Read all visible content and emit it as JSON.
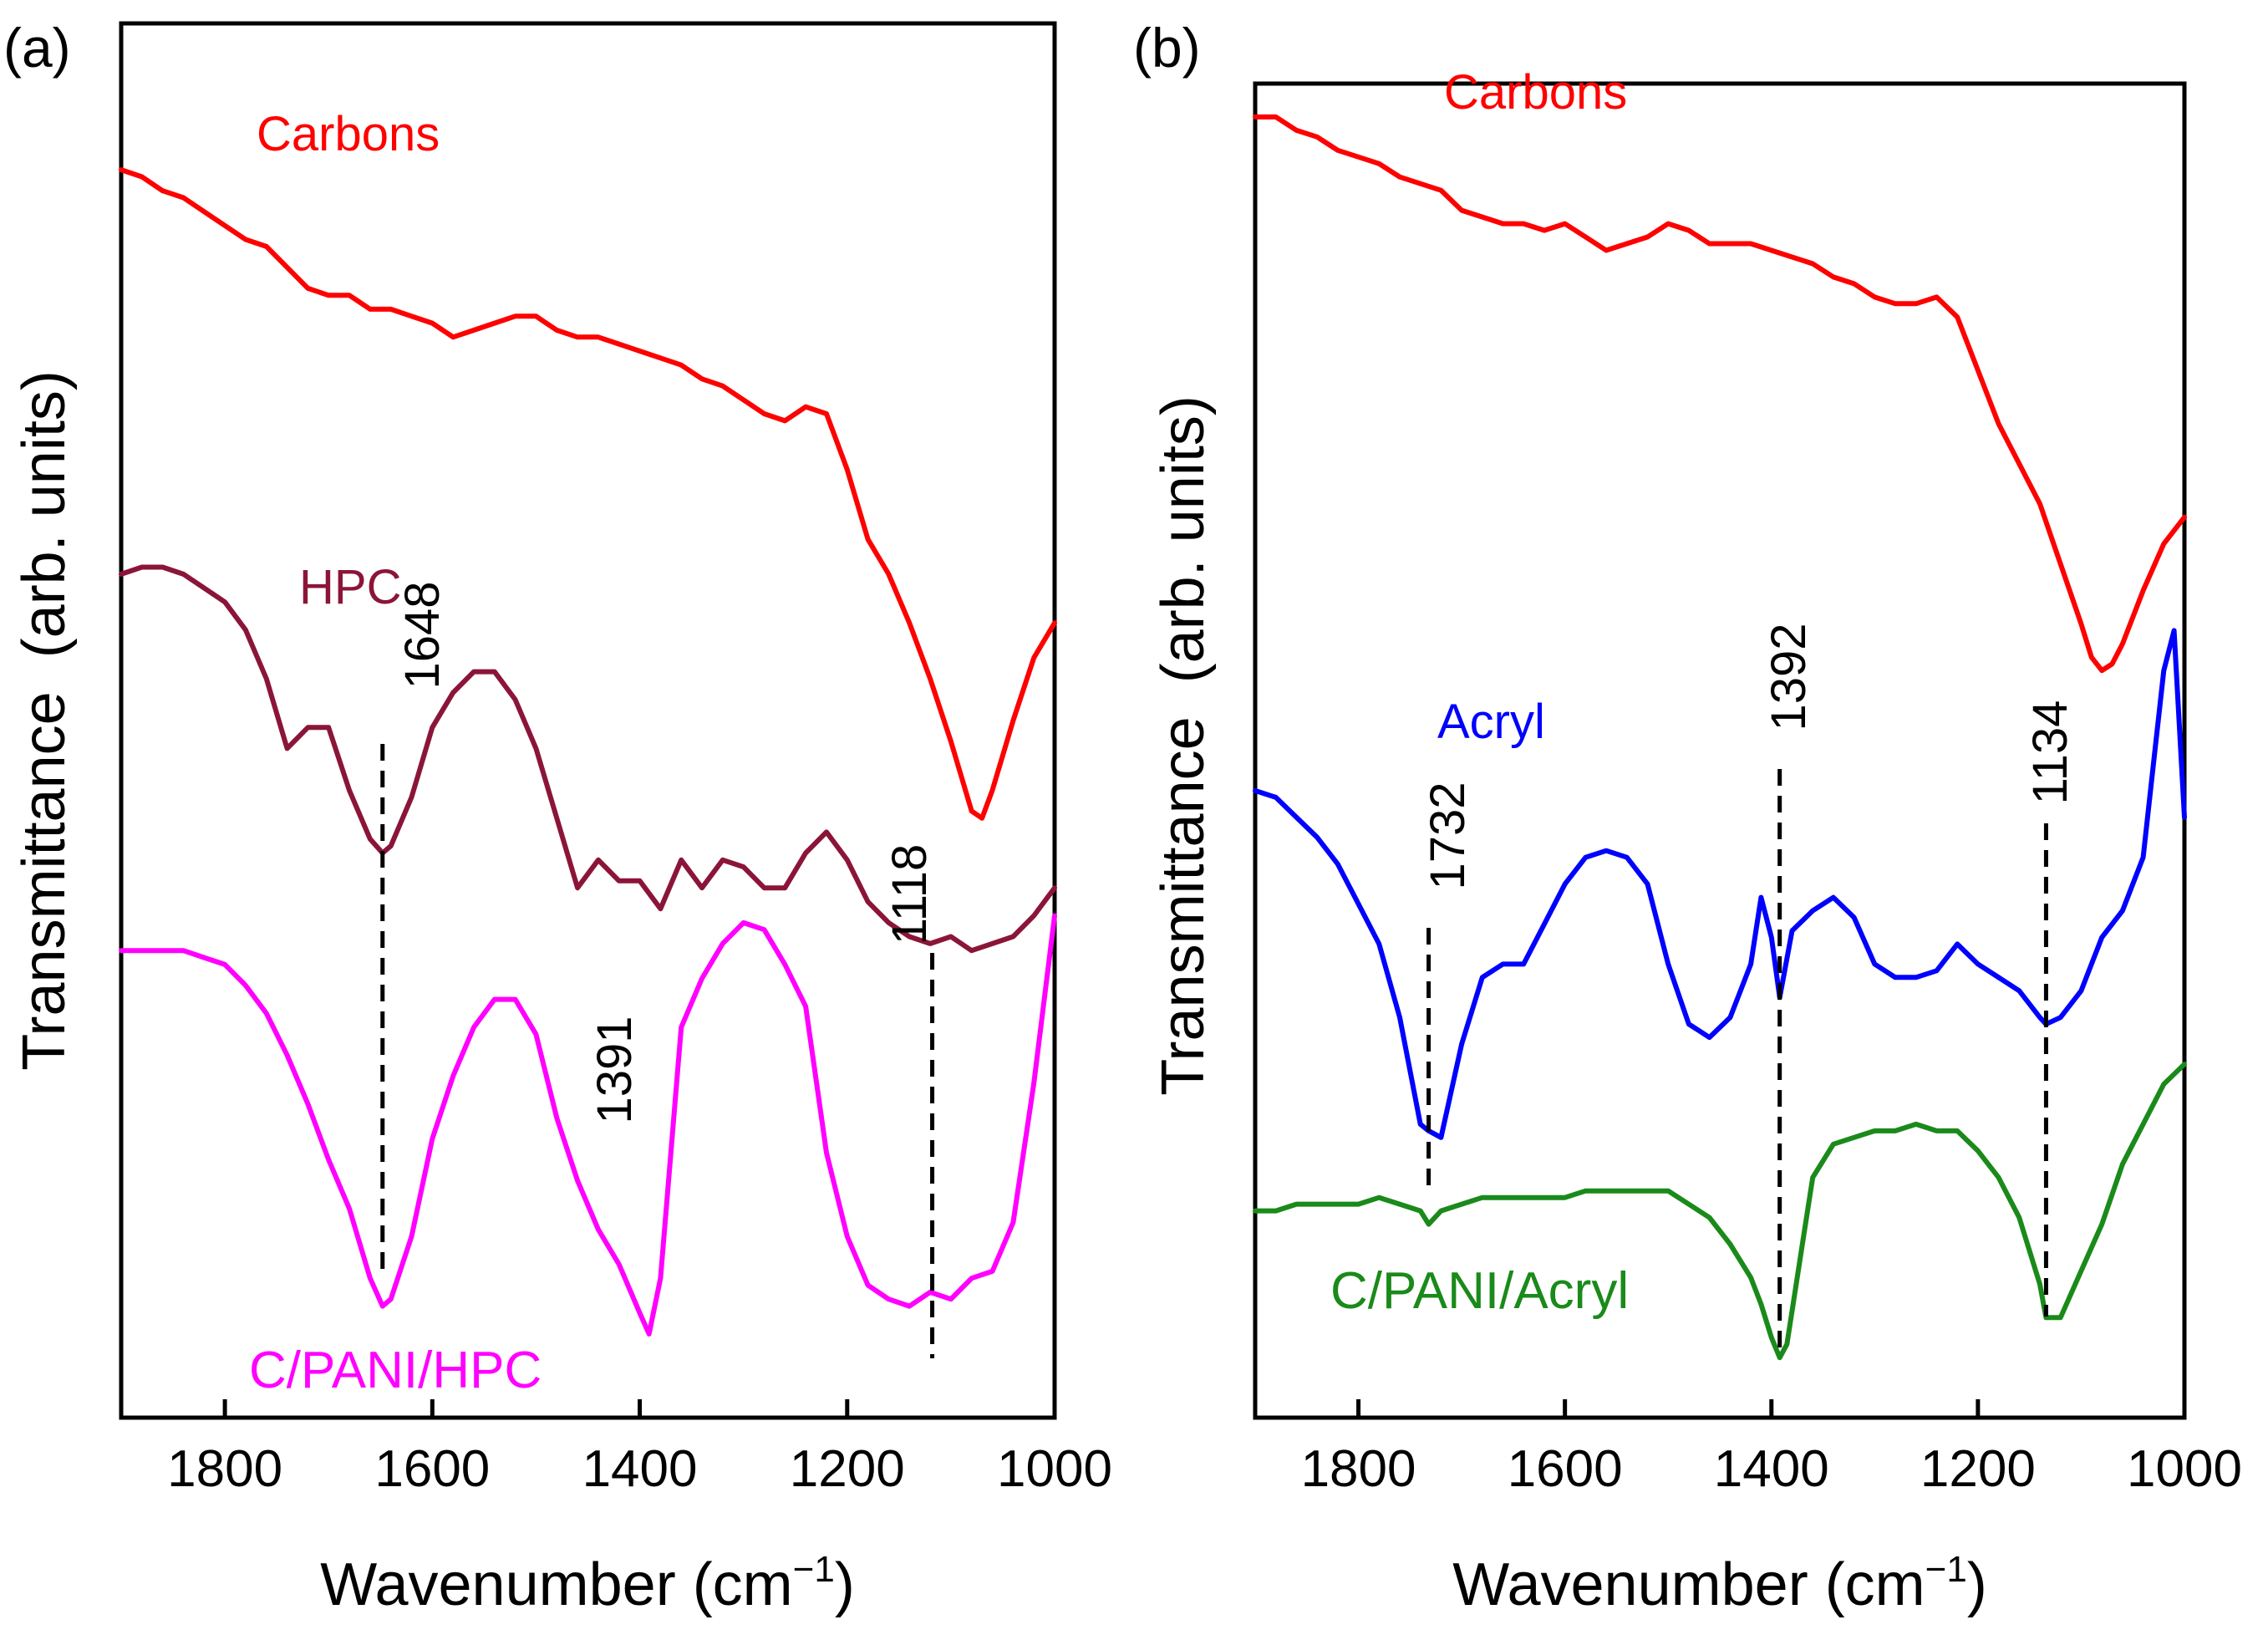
{
  "chart_data": [
    {
      "panel": "(a)",
      "type": "line",
      "xlabel": "Wavenumber (cm",
      "xlabel_sup": "−1",
      "xlabel_tail": ")",
      "ylabel": "Transmittance  (arb. units)",
      "xlim": [
        1900,
        1000
      ],
      "x_ticks": [
        1800,
        1600,
        1400,
        1200,
        1000
      ],
      "y_axis_units": "arbitrary (offset traces, 0 = bottom, 100 = top)",
      "ylim": [
        0,
        100
      ],
      "series": [
        {
          "name": "Carbons",
          "color": "#ff0000",
          "x": [
            1900,
            1880,
            1860,
            1840,
            1820,
            1800,
            1780,
            1760,
            1740,
            1720,
            1700,
            1680,
            1660,
            1640,
            1620,
            1600,
            1580,
            1560,
            1540,
            1520,
            1500,
            1480,
            1460,
            1440,
            1420,
            1400,
            1380,
            1360,
            1340,
            1320,
            1300,
            1280,
            1260,
            1240,
            1220,
            1200,
            1180,
            1160,
            1140,
            1120,
            1100,
            1090,
            1080,
            1070,
            1060,
            1040,
            1020,
            1000
          ],
          "y": [
            89.5,
            89.0,
            88.0,
            87.5,
            86.5,
            85.5,
            84.5,
            84.0,
            82.5,
            81.0,
            80.5,
            80.5,
            79.5,
            79.5,
            79.0,
            78.5,
            77.5,
            78.0,
            78.5,
            79.0,
            79.0,
            78.0,
            77.5,
            77.5,
            77.0,
            76.5,
            76.0,
            75.5,
            74.5,
            74.0,
            73.0,
            72.0,
            71.5,
            72.5,
            72.0,
            68.0,
            63.0,
            60.5,
            57.0,
            53.0,
            48.5,
            46.0,
            43.5,
            43.0,
            45.0,
            50.0,
            54.5,
            57.0
          ]
        },
        {
          "name": "HPC",
          "color": "#8b1538",
          "x": [
            1900,
            1880,
            1860,
            1840,
            1820,
            1800,
            1780,
            1760,
            1740,
            1720,
            1700,
            1680,
            1660,
            1648,
            1640,
            1620,
            1600,
            1580,
            1560,
            1540,
            1520,
            1500,
            1480,
            1460,
            1440,
            1420,
            1400,
            1380,
            1360,
            1340,
            1320,
            1300,
            1280,
            1260,
            1240,
            1220,
            1200,
            1180,
            1160,
            1140,
            1120,
            1100,
            1080,
            1060,
            1040,
            1020,
            1000
          ],
          "y": [
            60.5,
            61.0,
            61.0,
            60.5,
            59.5,
            58.5,
            56.5,
            53.0,
            48.0,
            49.5,
            49.5,
            45.0,
            41.5,
            40.5,
            41.0,
            44.5,
            49.5,
            52.0,
            53.5,
            53.5,
            51.5,
            48.0,
            43.0,
            38.0,
            40.0,
            38.5,
            38.5,
            36.5,
            40.0,
            38.0,
            40.0,
            39.5,
            38.0,
            38.0,
            40.5,
            42.0,
            40.0,
            37.0,
            35.5,
            34.5,
            34.0,
            34.5,
            33.5,
            34.0,
            34.5,
            36.0,
            38.0
          ]
        },
        {
          "name": "C/PANI/HPC",
          "color": "#ff00ff",
          "x": [
            1900,
            1880,
            1860,
            1840,
            1820,
            1800,
            1780,
            1760,
            1740,
            1720,
            1700,
            1680,
            1660,
            1648,
            1640,
            1620,
            1600,
            1580,
            1560,
            1540,
            1520,
            1500,
            1480,
            1460,
            1440,
            1420,
            1400,
            1391,
            1380,
            1360,
            1340,
            1320,
            1300,
            1280,
            1260,
            1240,
            1220,
            1200,
            1180,
            1160,
            1140,
            1120,
            1100,
            1080,
            1060,
            1040,
            1020,
            1000
          ],
          "y": [
            33.5,
            33.5,
            33.5,
            33.5,
            33.0,
            32.5,
            31.0,
            29.0,
            26.0,
            22.5,
            18.5,
            15.0,
            10.0,
            8.0,
            8.5,
            13.0,
            20.0,
            24.5,
            28.0,
            30.0,
            30.0,
            27.5,
            21.5,
            17.0,
            13.5,
            11.0,
            7.5,
            6.0,
            10.0,
            28.0,
            31.5,
            34.0,
            35.5,
            35.0,
            32.5,
            29.5,
            19.0,
            13.0,
            9.5,
            8.5,
            8.0,
            9.0,
            8.5,
            10.0,
            10.5,
            14.0,
            24.0,
            36.0
          ]
        }
      ],
      "annotations": [
        {
          "text": "1648",
          "x": 1648
        },
        {
          "text": "1391",
          "x": 1391
        },
        {
          "text": "1118",
          "x": 1118
        }
      ]
    },
    {
      "panel": "(b)",
      "type": "line",
      "xlabel": "Wavenumber (cm",
      "xlabel_sup": "−1",
      "xlabel_tail": ")",
      "ylabel": "Transmittance  (arb. units)",
      "xlim": [
        1900,
        1000
      ],
      "x_ticks": [
        1800,
        1600,
        1400,
        1200,
        1000
      ],
      "y_axis_units": "arbitrary (offset traces, 0 = bottom, 100 = top)",
      "ylim": [
        0,
        100
      ],
      "series": [
        {
          "name": "Carbons",
          "color": "#ff0000",
          "x": [
            1900,
            1880,
            1860,
            1840,
            1820,
            1800,
            1780,
            1760,
            1740,
            1720,
            1700,
            1680,
            1660,
            1640,
            1620,
            1600,
            1580,
            1560,
            1540,
            1520,
            1500,
            1480,
            1460,
            1440,
            1420,
            1400,
            1380,
            1360,
            1340,
            1320,
            1300,
            1280,
            1260,
            1240,
            1220,
            1200,
            1180,
            1160,
            1140,
            1120,
            1100,
            1090,
            1080,
            1070,
            1060,
            1040,
            1020,
            1000
          ],
          "y": [
            97.5,
            97.5,
            96.5,
            96.0,
            95.0,
            94.5,
            94.0,
            93.0,
            92.5,
            92.0,
            90.5,
            90.0,
            89.5,
            89.5,
            89.0,
            89.5,
            88.5,
            87.5,
            88.0,
            88.5,
            89.5,
            89.0,
            88.0,
            88.0,
            88.0,
            87.5,
            87.0,
            86.5,
            85.5,
            85.0,
            84.0,
            83.5,
            83.5,
            84.0,
            82.5,
            78.5,
            74.5,
            71.5,
            68.5,
            64.0,
            59.5,
            57.0,
            56.0,
            56.5,
            58.0,
            62.0,
            65.5,
            67.5
          ]
        },
        {
          "name": "Acryl",
          "color": "#0000ff",
          "x": [
            1900,
            1880,
            1860,
            1840,
            1820,
            1800,
            1780,
            1760,
            1740,
            1732,
            1720,
            1700,
            1680,
            1660,
            1640,
            1620,
            1600,
            1580,
            1560,
            1540,
            1520,
            1500,
            1480,
            1460,
            1440,
            1420,
            1410,
            1400,
            1392,
            1380,
            1360,
            1340,
            1320,
            1300,
            1280,
            1260,
            1240,
            1220,
            1200,
            1180,
            1160,
            1140,
            1134,
            1120,
            1100,
            1080,
            1060,
            1040,
            1030,
            1020,
            1010,
            1000
          ],
          "y": [
            47.0,
            46.5,
            45.0,
            43.5,
            41.5,
            38.5,
            35.5,
            30.0,
            22.0,
            21.5,
            21.0,
            28.0,
            33.0,
            34.0,
            34.0,
            37.0,
            40.0,
            42.0,
            42.5,
            42.0,
            40.0,
            34.0,
            29.5,
            28.5,
            30.0,
            34.0,
            39.0,
            36.0,
            31.5,
            36.5,
            38.0,
            39.0,
            37.5,
            34.0,
            33.0,
            33.0,
            33.5,
            35.5,
            34.0,
            33.0,
            32.0,
            30.0,
            29.5,
            30.0,
            32.0,
            36.0,
            38.0,
            42.0,
            49.0,
            56.0,
            59.0,
            45.0
          ]
        },
        {
          "name": "C/PANI/Acryl",
          "color": "#1a8a1a",
          "x": [
            1900,
            1880,
            1860,
            1840,
            1820,
            1800,
            1780,
            1760,
            1740,
            1732,
            1720,
            1700,
            1680,
            1660,
            1640,
            1620,
            1600,
            1580,
            1560,
            1540,
            1520,
            1500,
            1480,
            1460,
            1440,
            1420,
            1410,
            1400,
            1392,
            1385,
            1380,
            1370,
            1360,
            1340,
            1320,
            1300,
            1280,
            1260,
            1240,
            1220,
            1200,
            1180,
            1160,
            1140,
            1134,
            1120,
            1100,
            1080,
            1060,
            1040,
            1020,
            1000
          ],
          "y": [
            15.5,
            15.5,
            16.0,
            16.0,
            16.0,
            16.0,
            16.5,
            16.0,
            15.5,
            14.5,
            15.5,
            16.0,
            16.5,
            16.5,
            16.5,
            16.5,
            16.5,
            17.0,
            17.0,
            17.0,
            17.0,
            17.0,
            16.0,
            15.0,
            13.0,
            10.5,
            8.5,
            6.0,
            4.5,
            5.5,
            8.0,
            13.0,
            18.0,
            20.5,
            21.0,
            21.5,
            21.5,
            22.0,
            21.5,
            21.5,
            20.0,
            18.0,
            15.0,
            10.0,
            7.5,
            7.5,
            11.0,
            14.5,
            19.0,
            22.0,
            25.0,
            26.5
          ]
        }
      ],
      "annotations": [
        {
          "text": "1732",
          "x": 1732
        },
        {
          "text": "1392",
          "x": 1392
        },
        {
          "text": "1134",
          "x": 1134
        }
      ]
    }
  ]
}
